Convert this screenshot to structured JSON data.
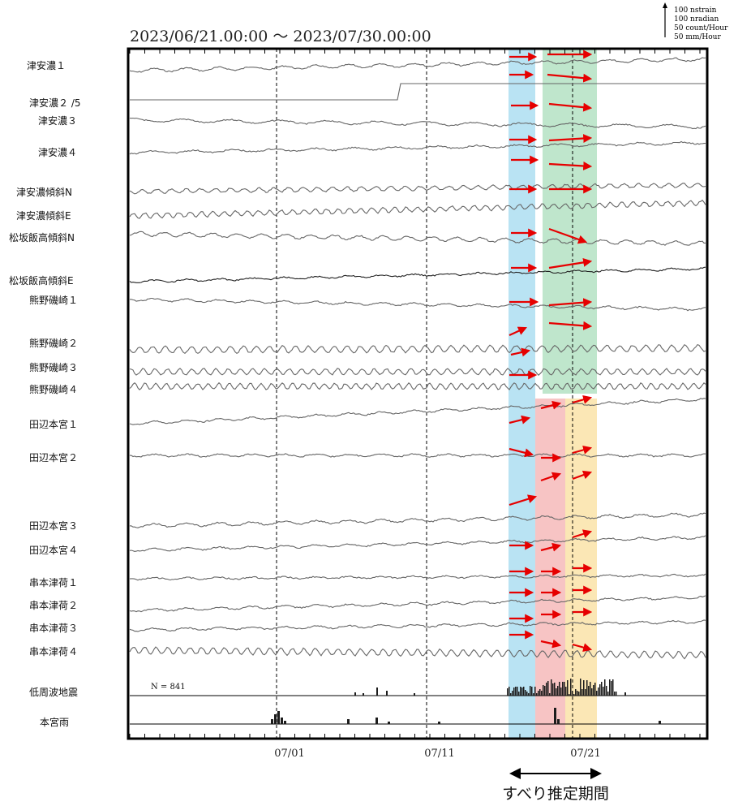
{
  "chart_data": {
    "type": "line",
    "title": "2023/06/21.00:00 ～ 2023/07/30.00:00",
    "scale_legend": [
      "100 nstrain",
      "100 nradian",
      "50 count/Hour",
      "50 mm/Hour"
    ],
    "x_ticks": [
      "07/01",
      "07/11",
      "07/21"
    ],
    "x_range": [
      "2023-06-21",
      "2023-07-30"
    ],
    "series": [
      {
        "name": "津安濃１"
      },
      {
        "name": "津安濃２ /5"
      },
      {
        "name": "津安濃３"
      },
      {
        "name": "津安濃４"
      },
      {
        "name": "津安濃傾斜N"
      },
      {
        "name": "津安濃傾斜E"
      },
      {
        "name": "松坂飯高傾斜N"
      },
      {
        "name": "松坂飯高傾斜E"
      },
      {
        "name": "熊野磯崎１"
      },
      {
        "name": "熊野磯崎２"
      },
      {
        "name": "熊野磯崎３"
      },
      {
        "name": "熊野磯崎４"
      },
      {
        "name": "田辺本宮１"
      },
      {
        "name": "田辺本宮２"
      },
      {
        "name": "田辺本宮３"
      },
      {
        "name": "田辺本宮４"
      },
      {
        "name": "串本津荷１"
      },
      {
        "name": "串本津荷２"
      },
      {
        "name": "串本津荷３"
      },
      {
        "name": "串本津荷４"
      }
    ],
    "histograms": [
      {
        "name": "低周波地震",
        "annotation": "N =   841"
      },
      {
        "name": "本宮雨"
      }
    ],
    "highlight_periods": [
      {
        "color": "#b9e3f3",
        "start": "2023-07-16",
        "end": "2023-07-18"
      },
      {
        "color": "#bfe6cc",
        "start": "2023-07-18",
        "end": "2023-07-22"
      },
      {
        "color": "#f7c4c4",
        "start": "2023-07-18",
        "end": "2023-07-20"
      },
      {
        "color": "#fbe7b5",
        "start": "2023-07-20",
        "end": "2023-07-22"
      }
    ],
    "annotation": "すべり推定期間"
  }
}
